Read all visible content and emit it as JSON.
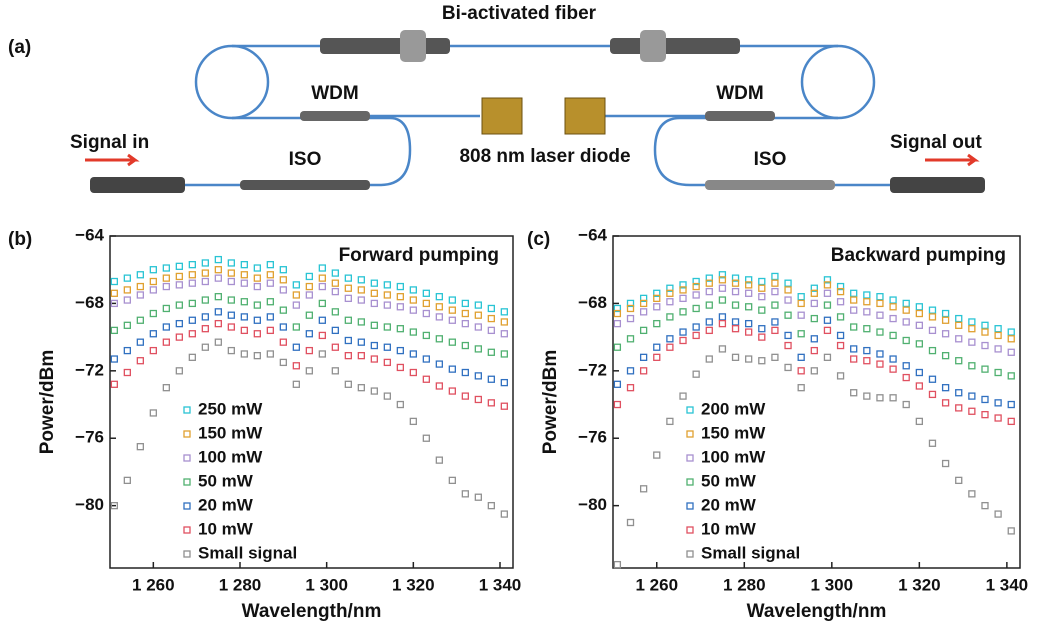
{
  "diagram": {
    "panel": "(a)",
    "title": "Bi-activated fiber",
    "wdm_left": "WDM",
    "wdm_right": "WDM",
    "iso_left": "ISO",
    "iso_right": "ISO",
    "signal_in": "Signal in",
    "signal_out": "Signal out",
    "laser": "808 nm laser diode"
  },
  "chart_data": [
    {
      "type": "scatter",
      "panel": "(b)",
      "title": "Forward  pumping",
      "x_label": "Wavelength/nm",
      "y_label": "Power/dBm",
      "xlim": [
        1250,
        1343
      ],
      "ylim": [
        -83.7,
        -64
      ],
      "xticks": [
        {
          "value": 1260,
          "label": "1 260"
        },
        {
          "value": 1280,
          "label": "1 280"
        },
        {
          "value": 1300,
          "label": "1 300"
        },
        {
          "value": 1320,
          "label": "1 320"
        },
        {
          "value": 1340,
          "label": "1 340"
        }
      ],
      "yticks": [
        {
          "value": -64,
          "label": "−64"
        },
        {
          "value": -68,
          "label": "−68"
        },
        {
          "value": -72,
          "label": "−72"
        },
        {
          "value": -76,
          "label": "−76"
        },
        {
          "value": -80,
          "label": "−80"
        }
      ],
      "x": [
        1251,
        1254,
        1257,
        1260,
        1263,
        1266,
        1269,
        1272,
        1275,
        1278,
        1281,
        1284,
        1287,
        1290,
        1293,
        1296,
        1299,
        1302,
        1305,
        1308,
        1311,
        1314,
        1317,
        1320,
        1323,
        1326,
        1329,
        1332,
        1335,
        1338,
        1341
      ],
      "series": [
        {
          "name": "250 mW",
          "color": "#29c4d4",
          "values": [
            -66.7,
            -66.5,
            -66.3,
            -66.0,
            -65.9,
            -65.8,
            -65.7,
            -65.6,
            -65.4,
            -65.6,
            -65.7,
            -65.9,
            -65.7,
            -66.0,
            -66.9,
            -66.4,
            -65.9,
            -66.2,
            -66.5,
            -66.6,
            -66.8,
            -66.9,
            -67.0,
            -67.2,
            -67.4,
            -67.6,
            -67.8,
            -68.0,
            -68.1,
            -68.3,
            -68.5
          ]
        },
        {
          "name": "150 mW",
          "color": "#e0a030",
          "values": [
            -67.4,
            -67.2,
            -67.0,
            -66.7,
            -66.5,
            -66.4,
            -66.3,
            -66.2,
            -66.0,
            -66.2,
            -66.3,
            -66.5,
            -66.3,
            -66.6,
            -67.5,
            -67.0,
            -66.5,
            -66.8,
            -67.1,
            -67.2,
            -67.4,
            -67.5,
            -67.6,
            -67.8,
            -68.0,
            -68.2,
            -68.4,
            -68.6,
            -68.7,
            -68.9,
            -69.1
          ]
        },
        {
          "name": "100 mW",
          "color": "#a890d0",
          "values": [
            -68.0,
            -67.8,
            -67.5,
            -67.2,
            -67.0,
            -66.9,
            -66.8,
            -66.7,
            -66.5,
            -66.7,
            -66.8,
            -67.0,
            -66.8,
            -67.2,
            -68.1,
            -67.5,
            -67.0,
            -67.3,
            -67.7,
            -67.8,
            -68.0,
            -68.1,
            -68.2,
            -68.4,
            -68.6,
            -68.8,
            -69.0,
            -69.2,
            -69.4,
            -69.6,
            -69.8
          ]
        },
        {
          "name": "50 mW",
          "color": "#50b070",
          "values": [
            -69.6,
            -69.3,
            -69.0,
            -68.6,
            -68.3,
            -68.1,
            -68.0,
            -67.8,
            -67.6,
            -67.8,
            -67.9,
            -68.1,
            -67.9,
            -68.4,
            -69.4,
            -68.7,
            -68.0,
            -68.5,
            -69.0,
            -69.1,
            -69.3,
            -69.4,
            -69.5,
            -69.7,
            -69.9,
            -70.1,
            -70.3,
            -70.5,
            -70.7,
            -70.9,
            -71.0
          ]
        },
        {
          "name": "20 mW",
          "color": "#3070c0",
          "values": [
            -71.3,
            -70.8,
            -70.3,
            -69.8,
            -69.4,
            -69.2,
            -69.0,
            -68.8,
            -68.5,
            -68.7,
            -68.8,
            -69.0,
            -68.8,
            -69.4,
            -70.6,
            -69.8,
            -69.0,
            -69.6,
            -70.2,
            -70.3,
            -70.5,
            -70.6,
            -70.8,
            -71.0,
            -71.3,
            -71.6,
            -71.9,
            -72.1,
            -72.3,
            -72.5,
            -72.7
          ]
        },
        {
          "name": "10 mW",
          "color": "#e05060",
          "values": [
            -72.8,
            -72.1,
            -71.4,
            -70.8,
            -70.3,
            -70.0,
            -69.8,
            -69.5,
            -69.2,
            -69.4,
            -69.6,
            -69.8,
            -69.6,
            -70.3,
            -71.7,
            -70.8,
            -69.9,
            -70.6,
            -71.1,
            -71.1,
            -71.3,
            -71.5,
            -71.8,
            -72.1,
            -72.5,
            -72.9,
            -73.2,
            -73.5,
            -73.7,
            -73.9,
            -74.1
          ]
        },
        {
          "name": "Small signal",
          "color": "#909090",
          "values": [
            -80.0,
            -78.5,
            -76.5,
            -74.5,
            -73.0,
            -72.0,
            -71.2,
            -70.6,
            -70.3,
            -70.8,
            -71.0,
            -71.1,
            -71.0,
            -71.5,
            -72.8,
            -72.0,
            -71.0,
            -72.0,
            -72.8,
            -73.0,
            -73.2,
            -73.5,
            -74.0,
            -75.0,
            -76.0,
            -77.3,
            -78.5,
            -79.3,
            -79.5,
            -80.0,
            -80.5
          ]
        }
      ]
    },
    {
      "type": "scatter",
      "panel": "(c)",
      "title": "Backward  pumping",
      "x_label": "Wavelength/nm",
      "y_label": "Power/dBm",
      "xlim": [
        1250,
        1343
      ],
      "ylim": [
        -83.7,
        -64
      ],
      "xticks": [
        {
          "value": 1260,
          "label": "1 260"
        },
        {
          "value": 1280,
          "label": "1 280"
        },
        {
          "value": 1300,
          "label": "1 300"
        },
        {
          "value": 1320,
          "label": "1 320"
        },
        {
          "value": 1340,
          "label": "1 340"
        }
      ],
      "yticks": [
        {
          "value": -64,
          "label": "−64"
        },
        {
          "value": -68,
          "label": "−68"
        },
        {
          "value": -72,
          "label": "−72"
        },
        {
          "value": -76,
          "label": "−76"
        },
        {
          "value": -80,
          "label": "−80"
        }
      ],
      "x": [
        1251,
        1254,
        1257,
        1260,
        1263,
        1266,
        1269,
        1272,
        1275,
        1278,
        1281,
        1284,
        1287,
        1290,
        1293,
        1296,
        1299,
        1302,
        1305,
        1308,
        1311,
        1314,
        1317,
        1320,
        1323,
        1326,
        1329,
        1332,
        1335,
        1338,
        1341
      ],
      "series": [
        {
          "name": "200 mW",
          "color": "#29c4d4",
          "values": [
            -68.3,
            -68.0,
            -67.7,
            -67.4,
            -67.1,
            -66.9,
            -66.7,
            -66.5,
            -66.3,
            -66.5,
            -66.6,
            -66.7,
            -66.4,
            -66.8,
            -67.6,
            -67.1,
            -66.6,
            -67.0,
            -67.4,
            -67.5,
            -67.6,
            -67.8,
            -68.0,
            -68.2,
            -68.4,
            -68.6,
            -68.9,
            -69.1,
            -69.3,
            -69.5,
            -69.7
          ]
        },
        {
          "name": "150 mW",
          "color": "#e0a030",
          "values": [
            -68.6,
            -68.3,
            -68.0,
            -67.7,
            -67.4,
            -67.2,
            -67.0,
            -66.8,
            -66.6,
            -66.8,
            -66.9,
            -67.1,
            -66.8,
            -67.2,
            -68.0,
            -67.4,
            -66.9,
            -67.3,
            -67.8,
            -67.9,
            -68.0,
            -68.2,
            -68.4,
            -68.6,
            -68.8,
            -69.0,
            -69.3,
            -69.5,
            -69.7,
            -69.9,
            -70.1
          ]
        },
        {
          "name": "100 mW",
          "color": "#a890d0",
          "values": [
            -69.2,
            -68.9,
            -68.5,
            -68.2,
            -67.9,
            -67.7,
            -67.5,
            -67.3,
            -67.1,
            -67.3,
            -67.4,
            -67.6,
            -67.3,
            -67.8,
            -68.7,
            -68.0,
            -67.4,
            -67.9,
            -68.4,
            -68.5,
            -68.7,
            -68.9,
            -69.1,
            -69.3,
            -69.6,
            -69.8,
            -70.1,
            -70.3,
            -70.5,
            -70.7,
            -70.9
          ]
        },
        {
          "name": "50 mW",
          "color": "#50b070",
          "values": [
            -70.6,
            -70.1,
            -69.6,
            -69.2,
            -68.8,
            -68.5,
            -68.3,
            -68.1,
            -67.8,
            -68.1,
            -68.2,
            -68.4,
            -68.1,
            -68.7,
            -69.8,
            -68.9,
            -68.1,
            -68.8,
            -69.4,
            -69.5,
            -69.7,
            -69.9,
            -70.2,
            -70.4,
            -70.8,
            -71.1,
            -71.4,
            -71.7,
            -71.9,
            -72.1,
            -72.3
          ]
        },
        {
          "name": "20 mW",
          "color": "#3070c0",
          "values": [
            -72.8,
            -72.0,
            -71.2,
            -70.6,
            -70.1,
            -69.7,
            -69.4,
            -69.1,
            -68.8,
            -69.1,
            -69.2,
            -69.5,
            -69.1,
            -69.9,
            -71.2,
            -70.1,
            -69.0,
            -69.9,
            -70.7,
            -70.8,
            -71.0,
            -71.3,
            -71.7,
            -72.1,
            -72.5,
            -73.0,
            -73.3,
            -73.5,
            -73.7,
            -73.9,
            -74.0
          ]
        },
        {
          "name": "10 mW",
          "color": "#e05060",
          "values": [
            -74.0,
            -73.0,
            -72.0,
            -71.2,
            -70.6,
            -70.2,
            -69.9,
            -69.6,
            -69.2,
            -69.5,
            -69.7,
            -70.0,
            -69.6,
            -70.5,
            -72.0,
            -70.8,
            -69.6,
            -70.5,
            -71.3,
            -71.4,
            -71.6,
            -71.9,
            -72.4,
            -72.9,
            -73.4,
            -73.9,
            -74.2,
            -74.4,
            -74.6,
            -74.8,
            -75.0
          ]
        },
        {
          "name": "Small signal",
          "color": "#909090",
          "values": [
            -83.5,
            -81.0,
            -79.0,
            -77.0,
            -75.0,
            -73.5,
            -72.2,
            -71.3,
            -70.7,
            -71.2,
            -71.3,
            -71.4,
            -71.2,
            -71.8,
            -73.0,
            -72.0,
            -71.2,
            -72.3,
            -73.3,
            -73.5,
            -73.6,
            -73.6,
            -74.0,
            -75.0,
            -76.3,
            -77.5,
            -78.5,
            -79.3,
            -80.0,
            -80.5,
            -81.5
          ]
        }
      ]
    }
  ]
}
